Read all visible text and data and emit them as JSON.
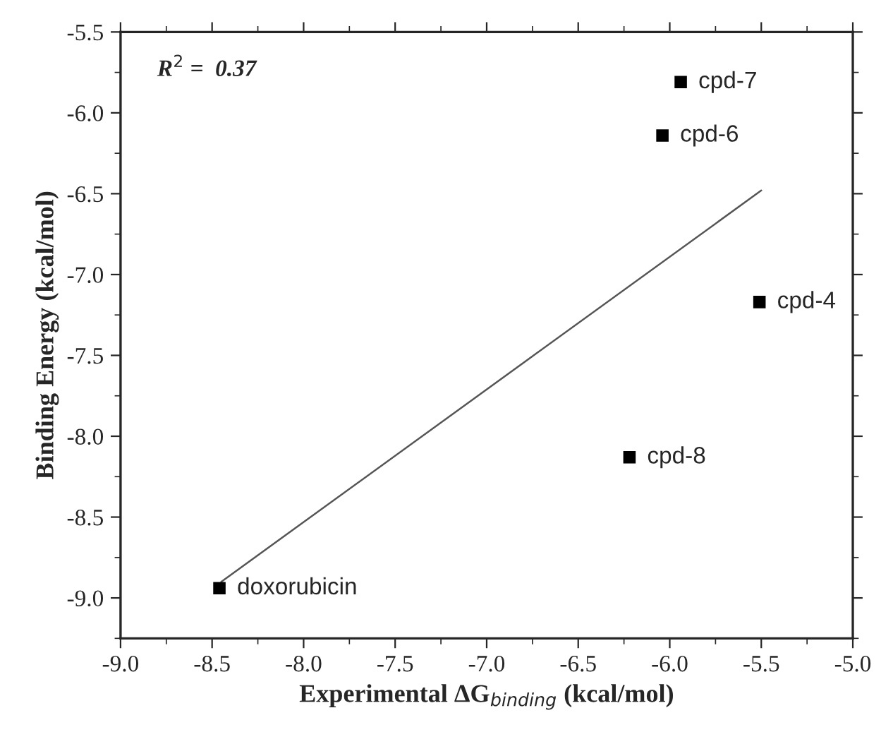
{
  "chart_data": {
    "type": "scatter",
    "xlabel": "Experimental ΔG$_{binding}$ (kcal/mol)",
    "ylabel": "Binding Energy (kcal/mol)",
    "series": [
      {
        "color": "#000000",
        "marker": "square",
        "x": [
          -8.46,
          -5.94,
          -6.04,
          -5.51,
          -6.22
        ],
        "values": [
          -8.94,
          -5.81,
          -6.14,
          -7.17,
          -8.13
        ]
      },
      {
        "type": "line",
        "color": "#555555",
        "marker": "none",
        "line_style": "solid",
        "x": [
          -8.45,
          -5.5
        ],
        "values": [
          -8.9,
          -6.48
        ]
      }
    ],
    "annotations": [
      {
        "text": "doxorubicin",
        "x": -8.46,
        "y": -8.94
      },
      {
        "text": "cpd-7",
        "x": -5.94,
        "y": -5.81
      },
      {
        "text": "cpd-6",
        "x": -6.04,
        "y": -6.14
      },
      {
        "text": "cpd-4",
        "x": -5.51,
        "y": -7.17
      },
      {
        "text": "cpd-8",
        "x": -6.22,
        "y": -8.13
      },
      "R$^{2}$ =  0.37"
    ],
    "xlim": [
      -9.0,
      -5.0
    ],
    "xticks": [
      {
        "value": -9.0,
        "label": "-9.0"
      },
      {
        "value": -8.5,
        "label": "-8.5"
      },
      {
        "value": -8.0,
        "label": "-8.0"
      },
      {
        "value": -7.5,
        "label": "-7.5"
      },
      {
        "value": -7.0,
        "label": "-7.0"
      },
      {
        "value": -6.5,
        "label": "-6.5"
      },
      {
        "value": -6.0,
        "label": "-6.0"
      },
      {
        "value": -5.5,
        "label": "-5.5"
      },
      {
        "value": -5.0,
        "label": "-5.0"
      }
    ],
    "ylim": [
      -9.25,
      -5.5
    ],
    "yticks": [
      {
        "value": -9.0,
        "label": "-9.0"
      },
      {
        "value": -8.5,
        "label": "-8.5"
      },
      {
        "value": -8.0,
        "label": "-8.0"
      },
      {
        "value": -7.5,
        "label": "-7.5"
      },
      {
        "value": -7.0,
        "label": "-7.0"
      },
      {
        "value": -6.5,
        "label": "-6.5"
      },
      {
        "value": -6.0,
        "label": "-6.0"
      },
      {
        "value": -5.5,
        "label": "-5.5"
      }
    ],
    "grid": false,
    "legend": false
  }
}
